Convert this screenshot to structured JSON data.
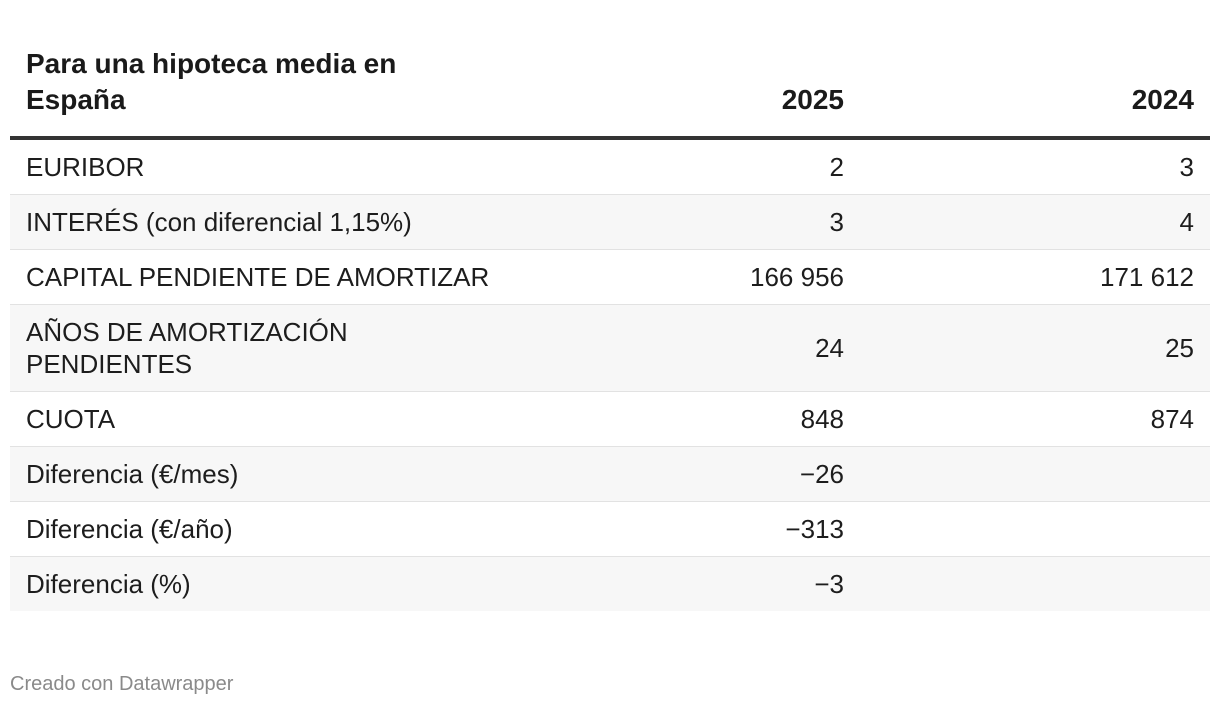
{
  "chart_data": {
    "type": "table",
    "title": "Para una hipoteca media en España",
    "columns": [
      "2025",
      "2024"
    ],
    "rows": [
      {
        "label": "EURIBOR",
        "v2025": "2",
        "v2024": "3"
      },
      {
        "label": "INTERÉS (con diferencial 1,15%)",
        "v2025": "3",
        "v2024": "4"
      },
      {
        "label": "CAPITAL PENDIENTE DE AMORTIZAR",
        "v2025": "166 956",
        "v2024": "171 612"
      },
      {
        "label": "AÑOS DE AMORTIZACIÓN PENDIENTES",
        "v2025": "24",
        "v2024": "25"
      },
      {
        "label": "CUOTA",
        "v2025": "848",
        "v2024": "874"
      },
      {
        "label": "Diferencia (€/mes)",
        "v2025": "−26",
        "v2024": ""
      },
      {
        "label": "Diferencia (€/año)",
        "v2025": "−313",
        "v2024": ""
      },
      {
        "label": "Diferencia (%)",
        "v2025": "−3",
        "v2024": ""
      }
    ]
  },
  "footer": {
    "credit": "Creado con Datawrapper"
  },
  "colors": {
    "text": "#1d1d1d",
    "header_rule": "#333333",
    "stripe": "#f7f7f7",
    "row_rule": "#e2e2e2",
    "footer_text": "#8a8a8a"
  }
}
